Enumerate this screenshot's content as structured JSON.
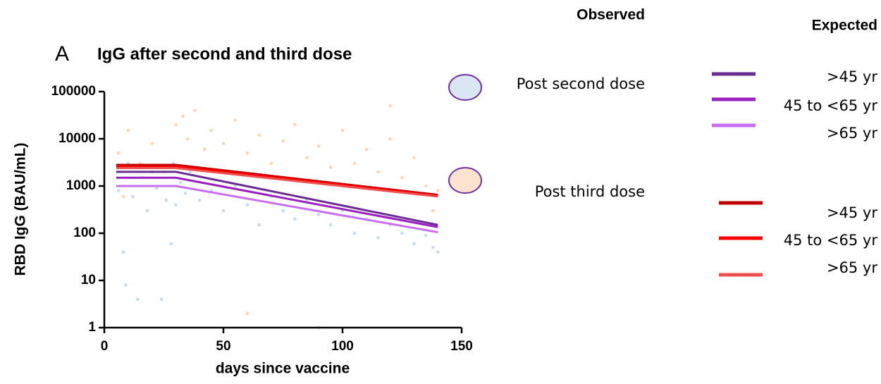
{
  "chart_data": {
    "type": "scatter",
    "panel_label": "A",
    "title": "IgG after second and third dose",
    "xlabel": "days since vaccine",
    "ylabel": "RBD IgG (BAU/mL)",
    "xlim": [
      0,
      150
    ],
    "xticks": [
      0,
      50,
      100,
      150
    ],
    "ylim": [
      1,
      100000
    ],
    "yticks": [
      1,
      10,
      100,
      1000,
      10000,
      100000
    ],
    "log_y": true,
    "observed_heading": "Observed",
    "expected_heading": "Expected",
    "scatter_series": [
      {
        "name": "Post second dose",
        "color": "#c5d9f1",
        "legend_fill": "#dbe6f5",
        "x": [
          6,
          8,
          10,
          12,
          14,
          16,
          18,
          20,
          22,
          24,
          26,
          28,
          30,
          32,
          34,
          36,
          40,
          45,
          50,
          55,
          60,
          65,
          70,
          75,
          80,
          85,
          90,
          95,
          100,
          105,
          110,
          115,
          120,
          125,
          130,
          135,
          138,
          140,
          9,
          29
        ],
        "values": [
          800,
          40,
          3000,
          600,
          4,
          1500,
          300,
          2000,
          900,
          4,
          500,
          60,
          400,
          1200,
          700,
          2000,
          500,
          800,
          300,
          1000,
          400,
          150,
          600,
          300,
          200,
          500,
          250,
          150,
          300,
          100,
          200,
          80,
          150,
          100,
          60,
          90,
          50,
          40,
          8,
          3000
        ]
      },
      {
        "name": "Post third dose",
        "color": "#fcd5b4",
        "legend_fill": "#fbe3d0",
        "x": [
          6,
          10,
          15,
          20,
          25,
          30,
          35,
          38,
          42,
          45,
          50,
          55,
          60,
          65,
          70,
          75,
          80,
          85,
          90,
          95,
          100,
          105,
          110,
          115,
          120,
          125,
          130,
          135,
          140,
          8,
          33,
          60,
          90,
          120,
          138
        ],
        "values": [
          5000,
          15000,
          3000,
          8000,
          2000,
          20000,
          10000,
          40000,
          6000,
          15000,
          8000,
          25000,
          5000,
          12000,
          3000,
          9000,
          20000,
          4000,
          7000,
          2500,
          15000,
          3000,
          6000,
          2000,
          10000,
          1500,
          4000,
          1000,
          800,
          600,
          30000,
          2,
          1,
          50000,
          300
        ]
      }
    ],
    "line_series": [
      {
        "name": ">45 yr",
        "color": "#6a2c91",
        "x": [
          5,
          30,
          140
        ],
        "values": [
          2000,
          2000,
          150
        ]
      },
      {
        "name": "45 to <65 yr",
        "color": "#9b1fc0",
        "x": [
          5,
          30,
          140
        ],
        "values": [
          1500,
          1500,
          135
        ]
      },
      {
        "name": ">65 yr",
        "color": "#c86ef0",
        "x": [
          5,
          30,
          140
        ],
        "values": [
          1000,
          1000,
          105
        ]
      },
      {
        "name": ">45 yr",
        "color": "#c00000",
        "x": [
          5,
          30,
          140
        ],
        "values": [
          2800,
          2800,
          650
        ]
      },
      {
        "name": "45 to <65 yr",
        "color": "#ff0000",
        "x": [
          5,
          30,
          140
        ],
        "values": [
          2600,
          2600,
          620
        ]
      },
      {
        "name": ">65 yr",
        "color": "#f05050",
        "x": [
          5,
          30,
          140
        ],
        "values": [
          2400,
          2400,
          600
        ]
      }
    ]
  }
}
